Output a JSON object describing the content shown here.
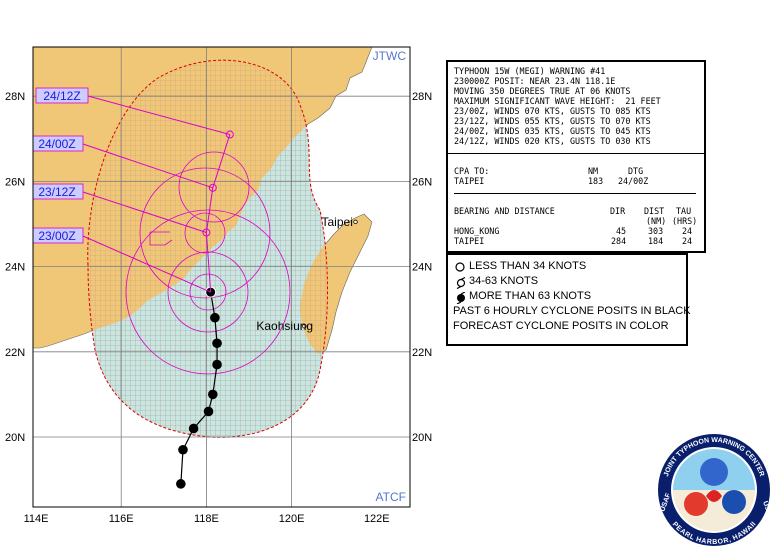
{
  "map": {
    "source_top": "JTWC",
    "source_bottom": "ATCF",
    "lon_labels": [
      "114E",
      "116E",
      "118E",
      "120E",
      "122E"
    ],
    "lat_labels": [
      "20N",
      "22N",
      "24N",
      "26N",
      "28N"
    ],
    "cities": [
      {
        "name": "Taipei",
        "lon": 121.5,
        "lat": 25.05
      },
      {
        "name": "Kaohsiung",
        "lon": 120.3,
        "lat": 22.6
      }
    ],
    "forecast_labels": [
      {
        "label": "24/12Z",
        "lon": 118.55,
        "lat": 27.1
      },
      {
        "label": "24/00Z",
        "lon": 118.15,
        "lat": 25.85
      },
      {
        "label": "23/12Z",
        "lon": 118.0,
        "lat": 24.8
      },
      {
        "label": "23/00Z",
        "lon": 118.1,
        "lat": 23.4
      }
    ],
    "past_track": [
      {
        "lon": 117.4,
        "lat": 18.9
      },
      {
        "lon": 117.45,
        "lat": 19.7
      },
      {
        "lon": 117.7,
        "lat": 20.2
      },
      {
        "lon": 118.05,
        "lat": 20.6
      },
      {
        "lon": 118.15,
        "lat": 21.0
      },
      {
        "lon": 118.25,
        "lat": 21.7
      },
      {
        "lon": 118.25,
        "lat": 22.2
      },
      {
        "lon": 118.2,
        "lat": 22.8
      }
    ],
    "current_position": {
      "lon": 118.1,
      "lat": 23.4
    },
    "forecast_track": [
      {
        "lon": 118.1,
        "lat": 23.4
      },
      {
        "lon": 118.0,
        "lat": 24.8
      },
      {
        "lon": 118.15,
        "lat": 25.85
      },
      {
        "lon": 118.55,
        "lat": 27.1
      }
    ],
    "colors": {
      "land": "#f0c777",
      "water_danger": "#c8e6e2",
      "track": "#dd00cc",
      "danger_border": "#dd0000",
      "label_fill": "#ccccff",
      "label_text": "#1a1ae6",
      "grid": "#7f7f7f"
    }
  },
  "warning": {
    "lines": [
      "TYPHOON 15W (MEGI) WARNING #41",
      "230000Z POSIT: NEAR 23.4N 118.1E",
      "MOVING 350 DEGREES TRUE AT 06 KNOTS",
      "MAXIMUM SIGNIFICANT WAVE HEIGHT:  21 FEET",
      "23/00Z, WINDS 070 KTS, GUSTS TO 085 KTS",
      "23/12Z, WINDS 055 KTS, GUSTS TO 070 KTS",
      "24/00Z, WINDS 035 KTS, GUSTS TO 045 KTS",
      "24/12Z, WINDS 020 KTS, GUSTS TO 030 KTS"
    ],
    "cpa": {
      "header": "CPA TO:",
      "col_nm": "NM",
      "col_dtg": "DTG",
      "rows": [
        {
          "place": "TAIPEI",
          "nm": "183",
          "dtg": "24/00Z"
        }
      ]
    },
    "bearing": {
      "header": "BEARING AND DISTANCE",
      "col_dir": "DIR",
      "col_dist": "DIST",
      "col_tau": "TAU",
      "sub_dist": "(NM)",
      "sub_tau": "(HRS)",
      "rows": [
        {
          "place": "HONG_KONG",
          "dir": "45",
          "dist": "303",
          "tau": "24"
        },
        {
          "place": "TAIPEI",
          "dir": "284",
          "dist": "184",
          "tau": "24"
        }
      ]
    }
  },
  "legend": {
    "items": [
      {
        "icon": "open-circle-icon",
        "label": "LESS THAN 34 KNOTS"
      },
      {
        "icon": "tropical-storm-icon",
        "label": "34-63 KNOTS"
      },
      {
        "icon": "typhoon-icon",
        "label": "MORE THAN 63 KNOTS"
      }
    ],
    "note1": "PAST 6 HOURLY CYCLONE POSITS IN BLACK",
    "note2": "FORECAST CYCLONE POSITS IN COLOR"
  },
  "logo": {
    "text_top": "JOINT TYPHOON WARNING CENTER",
    "text_left": "USAF",
    "text_right": "USN",
    "text_bottom": "PEARL HARBOR, HAWAII"
  }
}
